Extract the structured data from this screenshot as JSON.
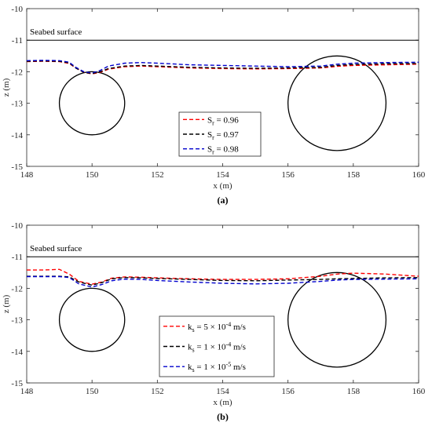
{
  "chart_data": [
    {
      "type": "line",
      "panel_label": "(a)",
      "xlabel": "x (m)",
      "ylabel": "z (m)",
      "xlim": [
        148,
        160
      ],
      "ylim": [
        -15,
        -10
      ],
      "xticks": [
        148,
        150,
        152,
        154,
        156,
        158,
        160
      ],
      "yticks": [
        -10,
        -11,
        -12,
        -13,
        -14,
        -15
      ],
      "annotation": "Seabed surface",
      "seabed_z": -11,
      "circles": [
        {
          "cx": 150,
          "cz": -13,
          "r": 1
        },
        {
          "cx": 157.5,
          "cz": -13,
          "r": 1.5
        }
      ],
      "legend": [
        {
          "label": "S",
          "sub": "r",
          "rest": " = 0.96",
          "color": "#ff0000"
        },
        {
          "label": "S",
          "sub": "r",
          "rest": " = 0.97",
          "color": "#000000"
        },
        {
          "label": "S",
          "sub": "r",
          "rest": " = 0.98",
          "color": "#0000cc"
        }
      ],
      "series": [
        {
          "color": "#ff0000",
          "points": [
            [
              148,
              -11.68
            ],
            [
              148.5,
              -11.67
            ],
            [
              149,
              -11.68
            ],
            [
              149.3,
              -11.74
            ],
            [
              149.5,
              -11.88
            ],
            [
              149.75,
              -12.02
            ],
            [
              150,
              -12.07
            ],
            [
              150.25,
              -12.02
            ],
            [
              150.5,
              -11.92
            ],
            [
              151,
              -11.84
            ],
            [
              151.5,
              -11.82
            ],
            [
              152,
              -11.84
            ],
            [
              153,
              -11.88
            ],
            [
              154,
              -11.9
            ],
            [
              155,
              -11.91
            ],
            [
              156,
              -11.9
            ],
            [
              157,
              -11.88
            ],
            [
              157.5,
              -11.83
            ],
            [
              158,
              -11.8
            ],
            [
              159,
              -11.78
            ],
            [
              160,
              -11.76
            ]
          ]
        },
        {
          "color": "#000000",
          "points": [
            [
              148,
              -11.67
            ],
            [
              148.5,
              -11.66
            ],
            [
              149,
              -11.67
            ],
            [
              149.3,
              -11.72
            ],
            [
              149.5,
              -11.88
            ],
            [
              149.75,
              -12.02
            ],
            [
              150,
              -12.06
            ],
            [
              150.25,
              -12.0
            ],
            [
              150.5,
              -11.9
            ],
            [
              151,
              -11.82
            ],
            [
              151.5,
              -11.8
            ],
            [
              152,
              -11.82
            ],
            [
              153,
              -11.86
            ],
            [
              154,
              -11.88
            ],
            [
              155,
              -11.89
            ],
            [
              156,
              -11.88
            ],
            [
              157,
              -11.86
            ],
            [
              157.5,
              -11.8
            ],
            [
              158,
              -11.77
            ],
            [
              159,
              -11.75
            ],
            [
              160,
              -11.74
            ]
          ]
        },
        {
          "color": "#0000cc",
          "points": [
            [
              148,
              -11.65
            ],
            [
              148.5,
              -11.64
            ],
            [
              149,
              -11.65
            ],
            [
              149.3,
              -11.7
            ],
            [
              149.5,
              -11.86
            ],
            [
              149.75,
              -12.0
            ],
            [
              150,
              -12.04
            ],
            [
              150.25,
              -11.96
            ],
            [
              150.5,
              -11.82
            ],
            [
              151,
              -11.73
            ],
            [
              151.5,
              -11.71
            ],
            [
              152,
              -11.73
            ],
            [
              153,
              -11.78
            ],
            [
              154,
              -11.8
            ],
            [
              155,
              -11.82
            ],
            [
              156,
              -11.84
            ],
            [
              157,
              -11.82
            ],
            [
              157.5,
              -11.76
            ],
            [
              158,
              -11.73
            ],
            [
              159,
              -11.71
            ],
            [
              160,
              -11.7
            ]
          ]
        }
      ]
    },
    {
      "type": "line",
      "panel_label": "(b)",
      "xlabel": "x (m)",
      "ylabel": "z (m)",
      "xlim": [
        148,
        160
      ],
      "ylim": [
        -15,
        -10
      ],
      "xticks": [
        148,
        150,
        152,
        154,
        156,
        158,
        160
      ],
      "yticks": [
        -10,
        -11,
        -12,
        -13,
        -14,
        -15
      ],
      "annotation": "Seabed surface",
      "seabed_z": -11,
      "circles": [
        {
          "cx": 150,
          "cz": -13,
          "r": 1
        },
        {
          "cx": 157.5,
          "cz": -13,
          "r": 1.5
        }
      ],
      "legend": [
        {
          "pre": "k",
          "pre_sub": "s",
          "mid": " = 5 × 10",
          "sup": "-4",
          "post": " m/s",
          "color": "#ff0000"
        },
        {
          "pre": "k",
          "pre_sub": "s",
          "mid": " = 1 × 10",
          "sup": "-4",
          "post": " m/s",
          "color": "#000000"
        },
        {
          "pre": "k",
          "pre_sub": "s",
          "mid": " = 1 × 10",
          "sup": "-5",
          "post": " m/s",
          "color": "#0000cc"
        }
      ],
      "series": [
        {
          "color": "#ff0000",
          "points": [
            [
              148,
              -11.42
            ],
            [
              148.5,
              -11.42
            ],
            [
              149,
              -11.4
            ],
            [
              149.3,
              -11.55
            ],
            [
              149.6,
              -11.78
            ],
            [
              150,
              -11.87
            ],
            [
              150.3,
              -11.8
            ],
            [
              150.6,
              -11.68
            ],
            [
              151,
              -11.64
            ],
            [
              151.5,
              -11.65
            ],
            [
              152,
              -11.67
            ],
            [
              153,
              -11.7
            ],
            [
              154,
              -11.72
            ],
            [
              155,
              -11.72
            ],
            [
              156,
              -11.7
            ],
            [
              157,
              -11.62
            ],
            [
              157.5,
              -11.55
            ],
            [
              158,
              -11.52
            ],
            [
              159,
              -11.55
            ],
            [
              160,
              -11.62
            ]
          ]
        },
        {
          "color": "#000000",
          "points": [
            [
              148,
              -11.62
            ],
            [
              148.5,
              -11.62
            ],
            [
              149,
              -11.62
            ],
            [
              149.3,
              -11.64
            ],
            [
              149.6,
              -11.8
            ],
            [
              150,
              -11.9
            ],
            [
              150.3,
              -11.82
            ],
            [
              150.6,
              -11.7
            ],
            [
              151,
              -11.66
            ],
            [
              151.5,
              -11.67
            ],
            [
              152,
              -11.69
            ],
            [
              153,
              -11.72
            ],
            [
              154,
              -11.75
            ],
            [
              155,
              -11.76
            ],
            [
              156,
              -11.74
            ],
            [
              157,
              -11.72
            ],
            [
              157.5,
              -11.7
            ],
            [
              158,
              -11.69
            ],
            [
              159,
              -11.67
            ],
            [
              160,
              -11.66
            ]
          ]
        },
        {
          "color": "#0000cc",
          "points": [
            [
              148,
              -11.63
            ],
            [
              148.5,
              -11.63
            ],
            [
              149,
              -11.63
            ],
            [
              149.3,
              -11.66
            ],
            [
              149.6,
              -11.86
            ],
            [
              150,
              -11.96
            ],
            [
              150.3,
              -11.88
            ],
            [
              150.6,
              -11.76
            ],
            [
              151,
              -11.71
            ],
            [
              151.5,
              -11.72
            ],
            [
              152,
              -11.75
            ],
            [
              153,
              -11.8
            ],
            [
              154,
              -11.84
            ],
            [
              155,
              -11.86
            ],
            [
              156,
              -11.84
            ],
            [
              157,
              -11.78
            ],
            [
              157.5,
              -11.74
            ],
            [
              158,
              -11.72
            ],
            [
              159,
              -11.71
            ],
            [
              160,
              -11.7
            ]
          ]
        }
      ]
    }
  ]
}
